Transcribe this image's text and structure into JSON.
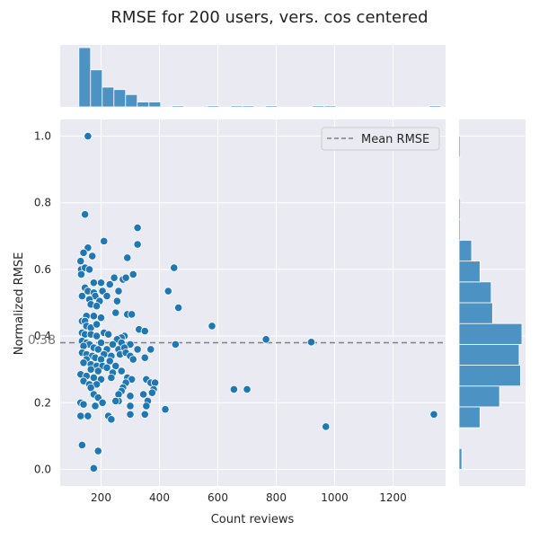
{
  "chart_data": {
    "type": "scatter",
    "title": "RMSE for 200 users, vers. cos centered",
    "xlabel": "Count reviews",
    "ylabel": "Normalized RMSE",
    "xlim": [
      60,
      1380
    ],
    "ylim": [
      -0.05,
      1.05
    ],
    "xticks": [
      200,
      400,
      600,
      800,
      1000,
      1200
    ],
    "yticks": [
      0.0,
      0.2,
      0.4,
      0.6,
      0.8,
      1.0
    ],
    "grid": true,
    "mean": 0.38,
    "mean_label": "0.38",
    "legend": {
      "position": "top-right",
      "entries": [
        {
          "label": "Mean RMSE",
          "style": "dashed",
          "color": "#7f7f7f"
        }
      ]
    },
    "colors": {
      "points": "#1f77b4",
      "bars": "#4c92c3",
      "background": "#eaeaf2",
      "grid": "#ffffff"
    },
    "points": [
      {
        "x": 155,
        "y": 1.0
      },
      {
        "x": 145,
        "y": 0.765
      },
      {
        "x": 325,
        "y": 0.725
      },
      {
        "x": 210,
        "y": 0.685
      },
      {
        "x": 325,
        "y": 0.675
      },
      {
        "x": 155,
        "y": 0.665
      },
      {
        "x": 140,
        "y": 0.65
      },
      {
        "x": 170,
        "y": 0.64
      },
      {
        "x": 290,
        "y": 0.635
      },
      {
        "x": 130,
        "y": 0.625
      },
      {
        "x": 132,
        "y": 0.6
      },
      {
        "x": 145,
        "y": 0.605
      },
      {
        "x": 160,
        "y": 0.6
      },
      {
        "x": 450,
        "y": 0.605
      },
      {
        "x": 132,
        "y": 0.585
      },
      {
        "x": 310,
        "y": 0.585
      },
      {
        "x": 245,
        "y": 0.575
      },
      {
        "x": 275,
        "y": 0.57
      },
      {
        "x": 285,
        "y": 0.575
      },
      {
        "x": 175,
        "y": 0.56
      },
      {
        "x": 200,
        "y": 0.56
      },
      {
        "x": 230,
        "y": 0.555
      },
      {
        "x": 145,
        "y": 0.545
      },
      {
        "x": 155,
        "y": 0.535
      },
      {
        "x": 175,
        "y": 0.53
      },
      {
        "x": 205,
        "y": 0.535
      },
      {
        "x": 260,
        "y": 0.535
      },
      {
        "x": 430,
        "y": 0.535
      },
      {
        "x": 135,
        "y": 0.52
      },
      {
        "x": 180,
        "y": 0.52
      },
      {
        "x": 220,
        "y": 0.52
      },
      {
        "x": 160,
        "y": 0.51
      },
      {
        "x": 195,
        "y": 0.505
      },
      {
        "x": 255,
        "y": 0.505
      },
      {
        "x": 165,
        "y": 0.495
      },
      {
        "x": 185,
        "y": 0.49
      },
      {
        "x": 465,
        "y": 0.485
      },
      {
        "x": 250,
        "y": 0.47
      },
      {
        "x": 290,
        "y": 0.465
      },
      {
        "x": 305,
        "y": 0.465
      },
      {
        "x": 150,
        "y": 0.46
      },
      {
        "x": 175,
        "y": 0.46
      },
      {
        "x": 200,
        "y": 0.455
      },
      {
        "x": 135,
        "y": 0.445
      },
      {
        "x": 145,
        "y": 0.445
      },
      {
        "x": 580,
        "y": 0.43
      },
      {
        "x": 150,
        "y": 0.43
      },
      {
        "x": 165,
        "y": 0.425
      },
      {
        "x": 185,
        "y": 0.435
      },
      {
        "x": 330,
        "y": 0.42
      },
      {
        "x": 350,
        "y": 0.415
      },
      {
        "x": 135,
        "y": 0.41
      },
      {
        "x": 145,
        "y": 0.405
      },
      {
        "x": 165,
        "y": 0.405
      },
      {
        "x": 185,
        "y": 0.4
      },
      {
        "x": 210,
        "y": 0.41
      },
      {
        "x": 225,
        "y": 0.405
      },
      {
        "x": 280,
        "y": 0.4
      },
      {
        "x": 270,
        "y": 0.395
      },
      {
        "x": 255,
        "y": 0.39
      },
      {
        "x": 765,
        "y": 0.39
      },
      {
        "x": 920,
        "y": 0.382
      },
      {
        "x": 135,
        "y": 0.385
      },
      {
        "x": 150,
        "y": 0.38
      },
      {
        "x": 160,
        "y": 0.375
      },
      {
        "x": 200,
        "y": 0.38
      },
      {
        "x": 240,
        "y": 0.375
      },
      {
        "x": 270,
        "y": 0.38
      },
      {
        "x": 300,
        "y": 0.375
      },
      {
        "x": 455,
        "y": 0.375
      },
      {
        "x": 140,
        "y": 0.37
      },
      {
        "x": 175,
        "y": 0.365
      },
      {
        "x": 190,
        "y": 0.36
      },
      {
        "x": 220,
        "y": 0.36
      },
      {
        "x": 260,
        "y": 0.36
      },
      {
        "x": 280,
        "y": 0.365
      },
      {
        "x": 325,
        "y": 0.36
      },
      {
        "x": 370,
        "y": 0.36
      },
      {
        "x": 135,
        "y": 0.35
      },
      {
        "x": 150,
        "y": 0.345
      },
      {
        "x": 170,
        "y": 0.34
      },
      {
        "x": 210,
        "y": 0.345
      },
      {
        "x": 235,
        "y": 0.34
      },
      {
        "x": 265,
        "y": 0.345
      },
      {
        "x": 285,
        "y": 0.35
      },
      {
        "x": 300,
        "y": 0.34
      },
      {
        "x": 150,
        "y": 0.33
      },
      {
        "x": 180,
        "y": 0.335
      },
      {
        "x": 200,
        "y": 0.33
      },
      {
        "x": 230,
        "y": 0.325
      },
      {
        "x": 310,
        "y": 0.33
      },
      {
        "x": 350,
        "y": 0.335
      },
      {
        "x": 140,
        "y": 0.32
      },
      {
        "x": 165,
        "y": 0.315
      },
      {
        "x": 185,
        "y": 0.31
      },
      {
        "x": 205,
        "y": 0.31
      },
      {
        "x": 220,
        "y": 0.305
      },
      {
        "x": 250,
        "y": 0.31
      },
      {
        "x": 165,
        "y": 0.3
      },
      {
        "x": 190,
        "y": 0.295
      },
      {
        "x": 240,
        "y": 0.29
      },
      {
        "x": 270,
        "y": 0.295
      },
      {
        "x": 130,
        "y": 0.285
      },
      {
        "x": 150,
        "y": 0.28
      },
      {
        "x": 175,
        "y": 0.275
      },
      {
        "x": 200,
        "y": 0.27
      },
      {
        "x": 235,
        "y": 0.275
      },
      {
        "x": 290,
        "y": 0.275
      },
      {
        "x": 305,
        "y": 0.27
      },
      {
        "x": 355,
        "y": 0.27
      },
      {
        "x": 140,
        "y": 0.265
      },
      {
        "x": 160,
        "y": 0.255
      },
      {
        "x": 185,
        "y": 0.255
      },
      {
        "x": 285,
        "y": 0.26
      },
      {
        "x": 370,
        "y": 0.26
      },
      {
        "x": 385,
        "y": 0.26
      },
      {
        "x": 165,
        "y": 0.245
      },
      {
        "x": 275,
        "y": 0.245
      },
      {
        "x": 380,
        "y": 0.24
      },
      {
        "x": 655,
        "y": 0.24
      },
      {
        "x": 700,
        "y": 0.24
      },
      {
        "x": 270,
        "y": 0.235
      },
      {
        "x": 375,
        "y": 0.23
      },
      {
        "x": 175,
        "y": 0.225
      },
      {
        "x": 260,
        "y": 0.225
      },
      {
        "x": 345,
        "y": 0.225
      },
      {
        "x": 190,
        "y": 0.215
      },
      {
        "x": 300,
        "y": 0.22
      },
      {
        "x": 260,
        "y": 0.205
      },
      {
        "x": 130,
        "y": 0.2
      },
      {
        "x": 205,
        "y": 0.2
      },
      {
        "x": 250,
        "y": 0.205
      },
      {
        "x": 360,
        "y": 0.205
      },
      {
        "x": 140,
        "y": 0.195
      },
      {
        "x": 180,
        "y": 0.19
      },
      {
        "x": 300,
        "y": 0.19
      },
      {
        "x": 355,
        "y": 0.19
      },
      {
        "x": 420,
        "y": 0.18
      },
      {
        "x": 300,
        "y": 0.165
      },
      {
        "x": 130,
        "y": 0.16
      },
      {
        "x": 155,
        "y": 0.16
      },
      {
        "x": 225,
        "y": 0.16
      },
      {
        "x": 350,
        "y": 0.165
      },
      {
        "x": 1340,
        "y": 0.165
      },
      {
        "x": 235,
        "y": 0.15
      },
      {
        "x": 970,
        "y": 0.128
      },
      {
        "x": 135,
        "y": 0.073
      },
      {
        "x": 190,
        "y": 0.055
      },
      {
        "x": 175,
        "y": 0.003
      }
    ],
    "x_histogram": {
      "bins": [
        {
          "x0": 124,
          "x1": 164,
          "count": 48
        },
        {
          "x0": 164,
          "x1": 204,
          "count": 30
        },
        {
          "x0": 204,
          "x1": 244,
          "count": 16
        },
        {
          "x0": 244,
          "x1": 284,
          "count": 14
        },
        {
          "x0": 284,
          "x1": 324,
          "count": 10
        },
        {
          "x0": 324,
          "x1": 364,
          "count": 4
        },
        {
          "x0": 364,
          "x1": 404,
          "count": 4
        },
        {
          "x0": 444,
          "x1": 484,
          "count": 1
        },
        {
          "x0": 564,
          "x1": 604,
          "count": 1
        },
        {
          "x0": 644,
          "x1": 684,
          "count": 1
        },
        {
          "x0": 684,
          "x1": 724,
          "count": 1
        },
        {
          "x0": 764,
          "x1": 804,
          "count": 1
        },
        {
          "x0": 924,
          "x1": 964,
          "count": 1
        },
        {
          "x0": 964,
          "x1": 1004,
          "count": 1
        },
        {
          "x0": 1324,
          "x1": 1364,
          "count": 1
        }
      ]
    },
    "y_histogram": {
      "bins": [
        {
          "y0": 0.0,
          "y1": 0.0625,
          "count": 2
        },
        {
          "y0": 0.125,
          "y1": 0.1875,
          "count": 15
        },
        {
          "y0": 0.1875,
          "y1": 0.25,
          "count": 29
        },
        {
          "y0": 0.25,
          "y1": 0.3125,
          "count": 44
        },
        {
          "y0": 0.3125,
          "y1": 0.375,
          "count": 43
        },
        {
          "y0": 0.375,
          "y1": 0.4375,
          "count": 45
        },
        {
          "y0": 0.4375,
          "y1": 0.5,
          "count": 24
        },
        {
          "y0": 0.5,
          "y1": 0.5625,
          "count": 23
        },
        {
          "y0": 0.5625,
          "y1": 0.625,
          "count": 15
        },
        {
          "y0": 0.625,
          "y1": 0.6875,
          "count": 9
        },
        {
          "y0": 0.6875,
          "y1": 0.75,
          "count": 1
        },
        {
          "y0": 0.75,
          "y1": 0.8125,
          "count": 1
        },
        {
          "y0": 0.9375,
          "y1": 1.0,
          "count": 1
        }
      ]
    }
  }
}
